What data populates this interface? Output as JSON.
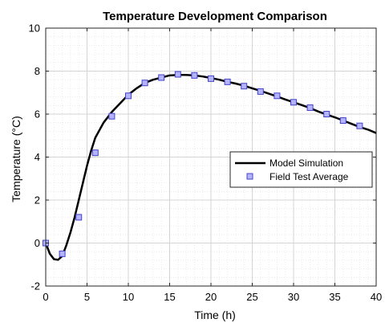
{
  "chart_data": {
    "type": "line",
    "title": "Temperature Development Comparison",
    "xlabel": "Time (h)",
    "ylabel": "Temperature (°C)",
    "xlim": [
      0,
      40
    ],
    "ylim": [
      -2,
      10
    ],
    "xticks": [
      0,
      5,
      10,
      15,
      20,
      25,
      30,
      35,
      40
    ],
    "yticks": [
      -2,
      0,
      2,
      4,
      6,
      8,
      10
    ],
    "grid": true,
    "minor_grid": true,
    "legend_position": "center-right",
    "series": [
      {
        "name": "Model Simulation",
        "style": "line",
        "color": "#000000",
        "x": [
          0,
          0.5,
          1,
          1.5,
          2,
          2.5,
          3,
          3.5,
          4,
          4.5,
          5,
          5.5,
          6,
          7,
          8,
          9,
          10,
          11,
          12,
          13,
          14,
          15,
          16,
          17,
          18,
          19,
          20,
          21,
          22,
          23,
          24,
          25,
          26,
          27,
          28,
          29,
          30,
          31,
          32,
          33,
          34,
          35,
          36,
          37,
          38,
          39,
          40
        ],
        "y": [
          0.0,
          -0.5,
          -0.75,
          -0.78,
          -0.6,
          -0.1,
          0.5,
          1.2,
          2.0,
          2.8,
          3.6,
          4.3,
          4.9,
          5.6,
          6.1,
          6.5,
          6.9,
          7.2,
          7.45,
          7.6,
          7.7,
          7.8,
          7.82,
          7.82,
          7.8,
          7.75,
          7.68,
          7.6,
          7.5,
          7.42,
          7.32,
          7.2,
          7.08,
          6.95,
          6.82,
          6.68,
          6.55,
          6.42,
          6.28,
          6.12,
          5.98,
          5.85,
          5.7,
          5.55,
          5.4,
          5.28,
          5.12
        ]
      },
      {
        "name": "Field Test Average",
        "style": "markers",
        "marker": "square",
        "color": "#4444cc",
        "fill": "#b3b3ff",
        "x": [
          0,
          2,
          4,
          6,
          8,
          10,
          12,
          14,
          16,
          18,
          20,
          22,
          24,
          26,
          28,
          30,
          32,
          34,
          36,
          38
        ],
        "y": [
          0.0,
          -0.5,
          1.2,
          4.2,
          5.9,
          6.85,
          7.45,
          7.7,
          7.85,
          7.8,
          7.65,
          7.5,
          7.3,
          7.05,
          6.85,
          6.55,
          6.3,
          6.0,
          5.7,
          5.45
        ]
      }
    ]
  }
}
